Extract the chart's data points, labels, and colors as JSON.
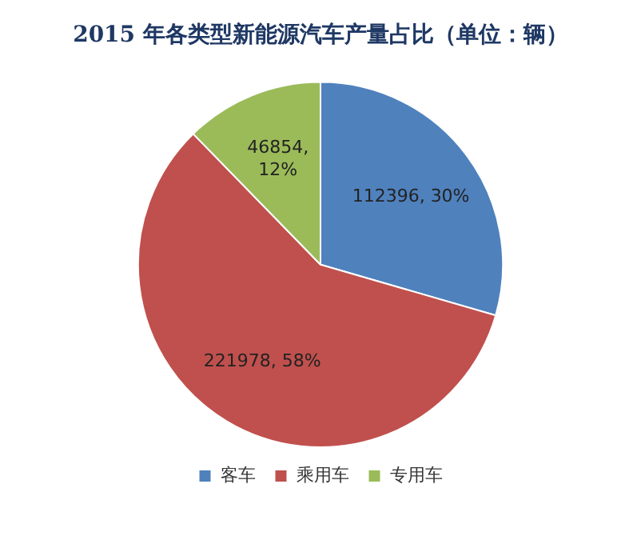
{
  "chart_data": {
    "type": "pie",
    "title": "2015 年各类型新能源汽车产量占比（单位：辆）",
    "categories": [
      "客车",
      "乘用车",
      "专用车"
    ],
    "values": [
      112396,
      221978,
      46854
    ],
    "colors": [
      "#4f81bd",
      "#c0504d",
      "#9bbb59"
    ],
    "value_labels": [
      "112396, 30%",
      "221978, 58%",
      "46854, 12%"
    ],
    "legend": "bottom"
  }
}
